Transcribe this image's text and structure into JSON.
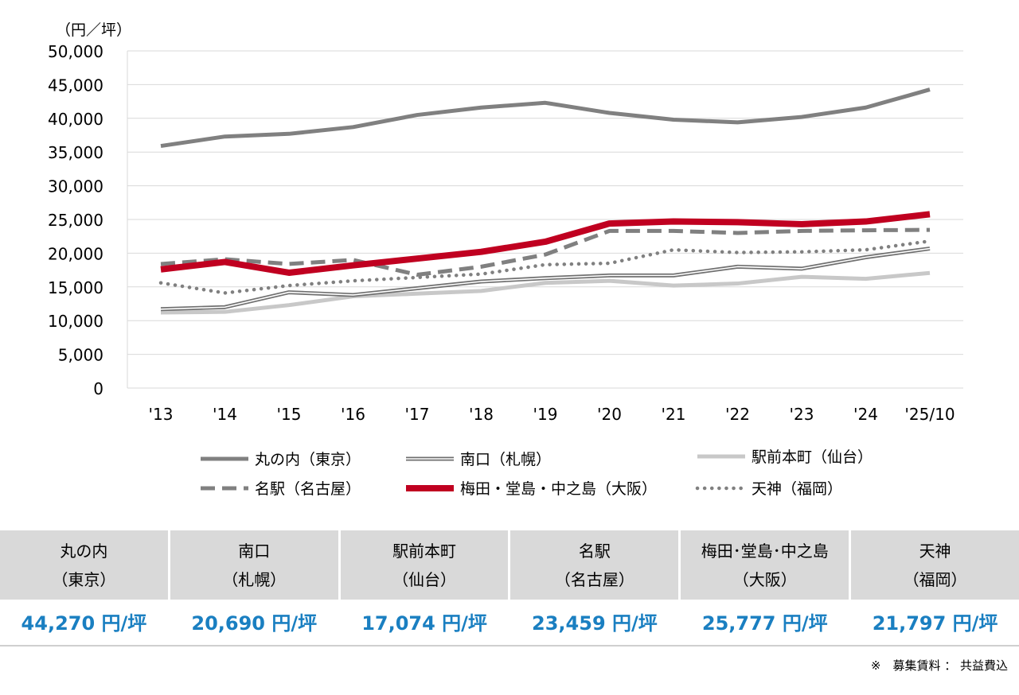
{
  "chart_data": {
    "type": "line",
    "unit_label": "（円／坪）",
    "categories": [
      "'13",
      "'14",
      "'15",
      "'16",
      "'17",
      "'18",
      "'19",
      "'20",
      "'21",
      "'22",
      "'23",
      "'24",
      "'25/10"
    ],
    "ylim": [
      0,
      50000
    ],
    "yticks": [
      0,
      5000,
      10000,
      15000,
      20000,
      25000,
      30000,
      35000,
      40000,
      45000,
      50000
    ],
    "ytick_labels": [
      "0",
      "5,000",
      "10,000",
      "15,000",
      "20,000",
      "25,000",
      "30,000",
      "35,000",
      "40,000",
      "45,000",
      "50,000"
    ],
    "grid": true,
    "legend_position": "bottom",
    "series": [
      {
        "name": "丸の内（東京）",
        "style": "solid",
        "color": "#808080",
        "values": [
          35900,
          37300,
          37700,
          38700,
          40500,
          41600,
          42300,
          40800,
          39800,
          39400,
          40200,
          41600,
          44270
        ]
      },
      {
        "name": "南口（札幌）",
        "style": "double",
        "color": "#707070",
        "values": [
          11700,
          12000,
          14200,
          13800,
          14800,
          15800,
          16300,
          16700,
          16700,
          18000,
          17700,
          19400,
          20690
        ]
      },
      {
        "name": "駅前本町（仙台）",
        "style": "solid-light",
        "color": "#c8c8c8",
        "values": [
          11200,
          11300,
          12300,
          13600,
          14000,
          14400,
          15600,
          15900,
          15200,
          15500,
          16500,
          16200,
          17074
        ]
      },
      {
        "name": "名駅（名古屋）",
        "style": "dashed",
        "color": "#808080",
        "values": [
          18400,
          19100,
          18400,
          19000,
          16800,
          18000,
          19800,
          23300,
          23300,
          23000,
          23300,
          23400,
          23459
        ]
      },
      {
        "name": "梅田・堂島・中之島（大阪）",
        "style": "solid-thick",
        "color": "#c00020",
        "values": [
          17600,
          18700,
          17100,
          18200,
          19200,
          20200,
          21700,
          24400,
          24700,
          24600,
          24300,
          24700,
          25777
        ]
      },
      {
        "name": "天神（福岡）",
        "style": "dotted",
        "color": "#808080",
        "values": [
          15600,
          14100,
          15200,
          15900,
          16400,
          16900,
          18300,
          18500,
          20500,
          20100,
          20200,
          20500,
          21797
        ]
      }
    ]
  },
  "summary": [
    {
      "area": "丸の内",
      "city": "（東京）",
      "value": "44,270 円/坪"
    },
    {
      "area": "南口",
      "city": "（札幌）",
      "value": "20,690 円/坪"
    },
    {
      "area": "駅前本町",
      "city": "（仙台）",
      "value": "17,074 円/坪"
    },
    {
      "area": "名駅",
      "city": "（名古屋）",
      "value": "23,459 円/坪"
    },
    {
      "area": "梅田･堂島･中之島",
      "city": "（大阪）",
      "value": "25,777 円/坪"
    },
    {
      "area": "天神",
      "city": "（福岡）",
      "value": "21,797 円/坪"
    }
  ],
  "footnote": "※　募集賃料 ： 共益費込"
}
